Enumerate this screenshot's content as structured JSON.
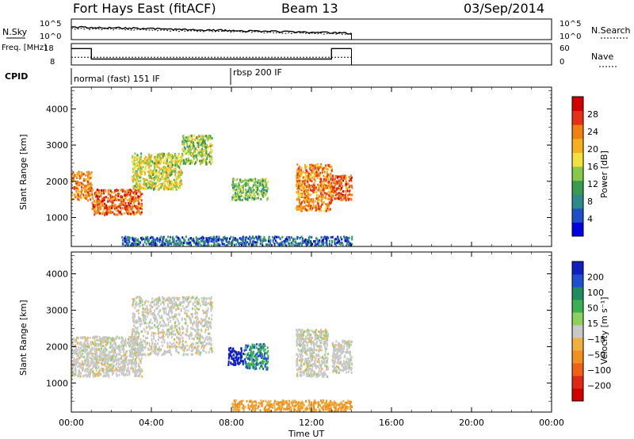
{
  "header": {
    "title": "Fort Hays East (fitACF)",
    "beam": "Beam 13",
    "date": "03/Sep/2014"
  },
  "colors": {
    "power_scale": [
      "#0000e0",
      "#1e4fc8",
      "#2e8a8a",
      "#3a9a50",
      "#86c84a",
      "#f0e040",
      "#f5b020",
      "#f08010",
      "#e83018",
      "#d00000"
    ],
    "velocity_scale": [
      "#1020c0",
      "#2050d0",
      "#208a60",
      "#3ab050",
      "#8ed060",
      "#c8c8c8",
      "#f0b040",
      "#f09020",
      "#f06018",
      "#e02818",
      "#d00000"
    ],
    "ground_scatter": "#c8c8c8"
  },
  "chart_data": [
    {
      "type": "line",
      "name": "summary_top",
      "panels": [
        {
          "left_label": "N.Sky",
          "right_label": "N.Search",
          "left_ticks": [
            "10^5",
            "10^0"
          ],
          "right_ticks": [
            "10^5",
            "10^0"
          ]
        },
        {
          "left_label": "Freq. [MHz]",
          "right_label": "Nave",
          "left_ticks": [
            "18",
            "8"
          ],
          "right_ticks": [
            "60",
            "0"
          ],
          "freq": {
            "x": [
              "00:00",
              "01:00",
              "01:00",
              "13:00",
              "13:00",
              "14:00"
            ],
            "y": [
              16.5,
              16.5,
              10.5,
              10.5,
              16.5,
              16.5
            ]
          },
          "nave": {
            "x": [
              "00:00",
              "14:00"
            ],
            "y": [
              21,
              21
            ]
          }
        },
        {
          "left_label": "CPID",
          "annotations": [
            {
              "text": "normal (fast) 151 IF",
              "at": "00:00"
            },
            {
              "text": "rbsp 200 IF",
              "at": "08:00"
            }
          ]
        }
      ]
    },
    {
      "type": "heatmap",
      "name": "power",
      "ylabel": "Slant Range [km]",
      "xlabel": "",
      "ylim": [
        200,
        4600
      ],
      "yticks": [
        "1000",
        "2000",
        "3000",
        "4000"
      ],
      "colorbar": {
        "label": "Power [dB]",
        "ticks": [
          "4",
          "8",
          "12",
          "16",
          "20",
          "24",
          "28"
        ],
        "range": [
          0,
          30
        ]
      },
      "scatter_regions": [
        {
          "t0": 0.0,
          "t1": 1.0,
          "r0": 1500,
          "r1": 2300,
          "level": 22
        },
        {
          "t0": 1.0,
          "t1": 3.5,
          "r0": 1100,
          "r1": 1800,
          "level": 24
        },
        {
          "t0": 3.0,
          "t1": 5.5,
          "r0": 1800,
          "r1": 2800,
          "level": 16
        },
        {
          "t0": 5.5,
          "t1": 7.0,
          "r0": 2500,
          "r1": 3300,
          "level": 14
        },
        {
          "t0": 8.0,
          "t1": 9.8,
          "r0": 1500,
          "r1": 2100,
          "level": 12
        },
        {
          "t0": 11.2,
          "t1": 13.0,
          "r0": 1200,
          "r1": 2500,
          "level": 22
        },
        {
          "t0": 13.0,
          "t1": 14.0,
          "r0": 1500,
          "r1": 2200,
          "level": 24
        },
        {
          "t0": 2.5,
          "t1": 14.0,
          "r0": 250,
          "r1": 500,
          "level": 6
        }
      ]
    },
    {
      "type": "heatmap",
      "name": "velocity",
      "ylabel": "Slant Range [km]",
      "xlabel": "Time UT",
      "ylim": [
        200,
        4600
      ],
      "yticks": [
        "1000",
        "2000",
        "3000",
        "4000"
      ],
      "xticks": [
        "00:00",
        "04:00",
        "08:00",
        "12:00",
        "16:00",
        "20:00",
        "00:00"
      ],
      "xlim": [
        0,
        24
      ],
      "colorbar": {
        "label": "Velocity [m s⁻¹]",
        "ticks": [
          "200",
          "100",
          "50",
          "15",
          "−15",
          "−50",
          "−100",
          "−200"
        ]
      },
      "scatter_regions": [
        {
          "t0": 0.0,
          "t1": 3.5,
          "r0": 1200,
          "r1": 2300,
          "level": 0
        },
        {
          "t0": 3.0,
          "t1": 7.0,
          "r0": 1800,
          "r1": 3400,
          "level": 0
        },
        {
          "t0": 7.8,
          "t1": 8.6,
          "r0": 1500,
          "r1": 2000,
          "level": 220
        },
        {
          "t0": 8.6,
          "t1": 9.8,
          "r0": 1400,
          "r1": 2100,
          "level": 70
        },
        {
          "t0": 11.2,
          "t1": 12.8,
          "r0": 1200,
          "r1": 2500,
          "level": 0
        },
        {
          "t0": 13.0,
          "t1": 14.0,
          "r0": 1300,
          "r1": 2200,
          "level": 0
        },
        {
          "t0": 8.0,
          "t1": 14.0,
          "r0": 250,
          "r1": 550,
          "level": -60
        }
      ]
    }
  ]
}
